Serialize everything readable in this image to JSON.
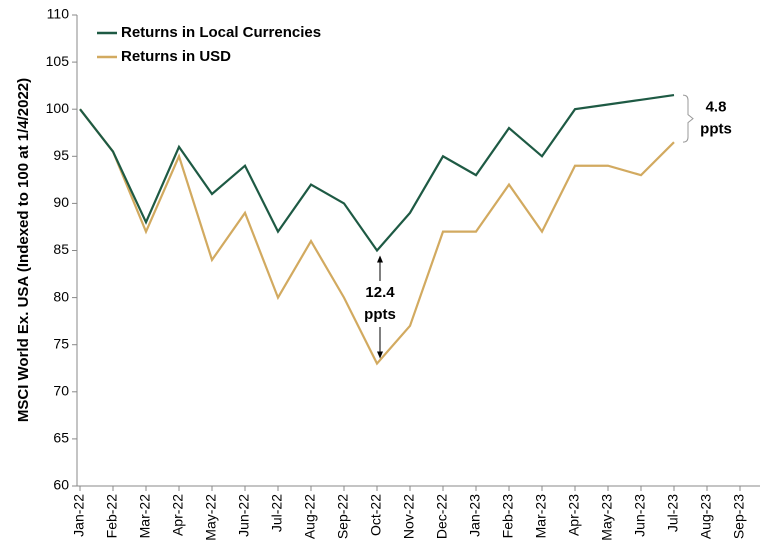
{
  "chart_data": {
    "type": "line",
    "y_label": "MSCI World Ex. USA (Indexed to 100 at 1/4/2022)",
    "categories": [
      "Jan-22",
      "Feb-22",
      "Mar-22",
      "Apr-22",
      "May-22",
      "Jun-22",
      "Jul-22",
      "Aug-22",
      "Sep-22",
      "Oct-22",
      "Nov-22",
      "Dec-22",
      "Jan-23",
      "Feb-23",
      "Mar-23",
      "Apr-23",
      "May-23",
      "Jun-23",
      "Jul-23",
      "Aug-23",
      "Sep-23"
    ],
    "series": [
      {
        "name": "Returns in Local Currencies",
        "color": "#1e5a44",
        "values": [
          100,
          95.5,
          88,
          96,
          91,
          94,
          87,
          92,
          90,
          85,
          89,
          95,
          93,
          98,
          95,
          100,
          100.5,
          101,
          101.5,
          null,
          null
        ]
      },
      {
        "name": "Returns in USD",
        "color": "#d2aa60",
        "values": [
          100,
          95.5,
          87,
          95,
          84,
          89,
          80,
          86,
          80,
          73,
          77,
          87,
          87,
          92,
          87,
          94,
          94,
          93,
          96.5,
          null,
          null
        ]
      }
    ],
    "annotations": [
      {
        "lines": [
          "12.4",
          "ppts"
        ]
      },
      {
        "lines": [
          "4.8",
          "ppts"
        ]
      }
    ],
    "ylim": [
      60,
      110
    ],
    "yticks": [
      60,
      65,
      70,
      75,
      80,
      85,
      90,
      95,
      100,
      105,
      110
    ],
    "grid": false
  }
}
